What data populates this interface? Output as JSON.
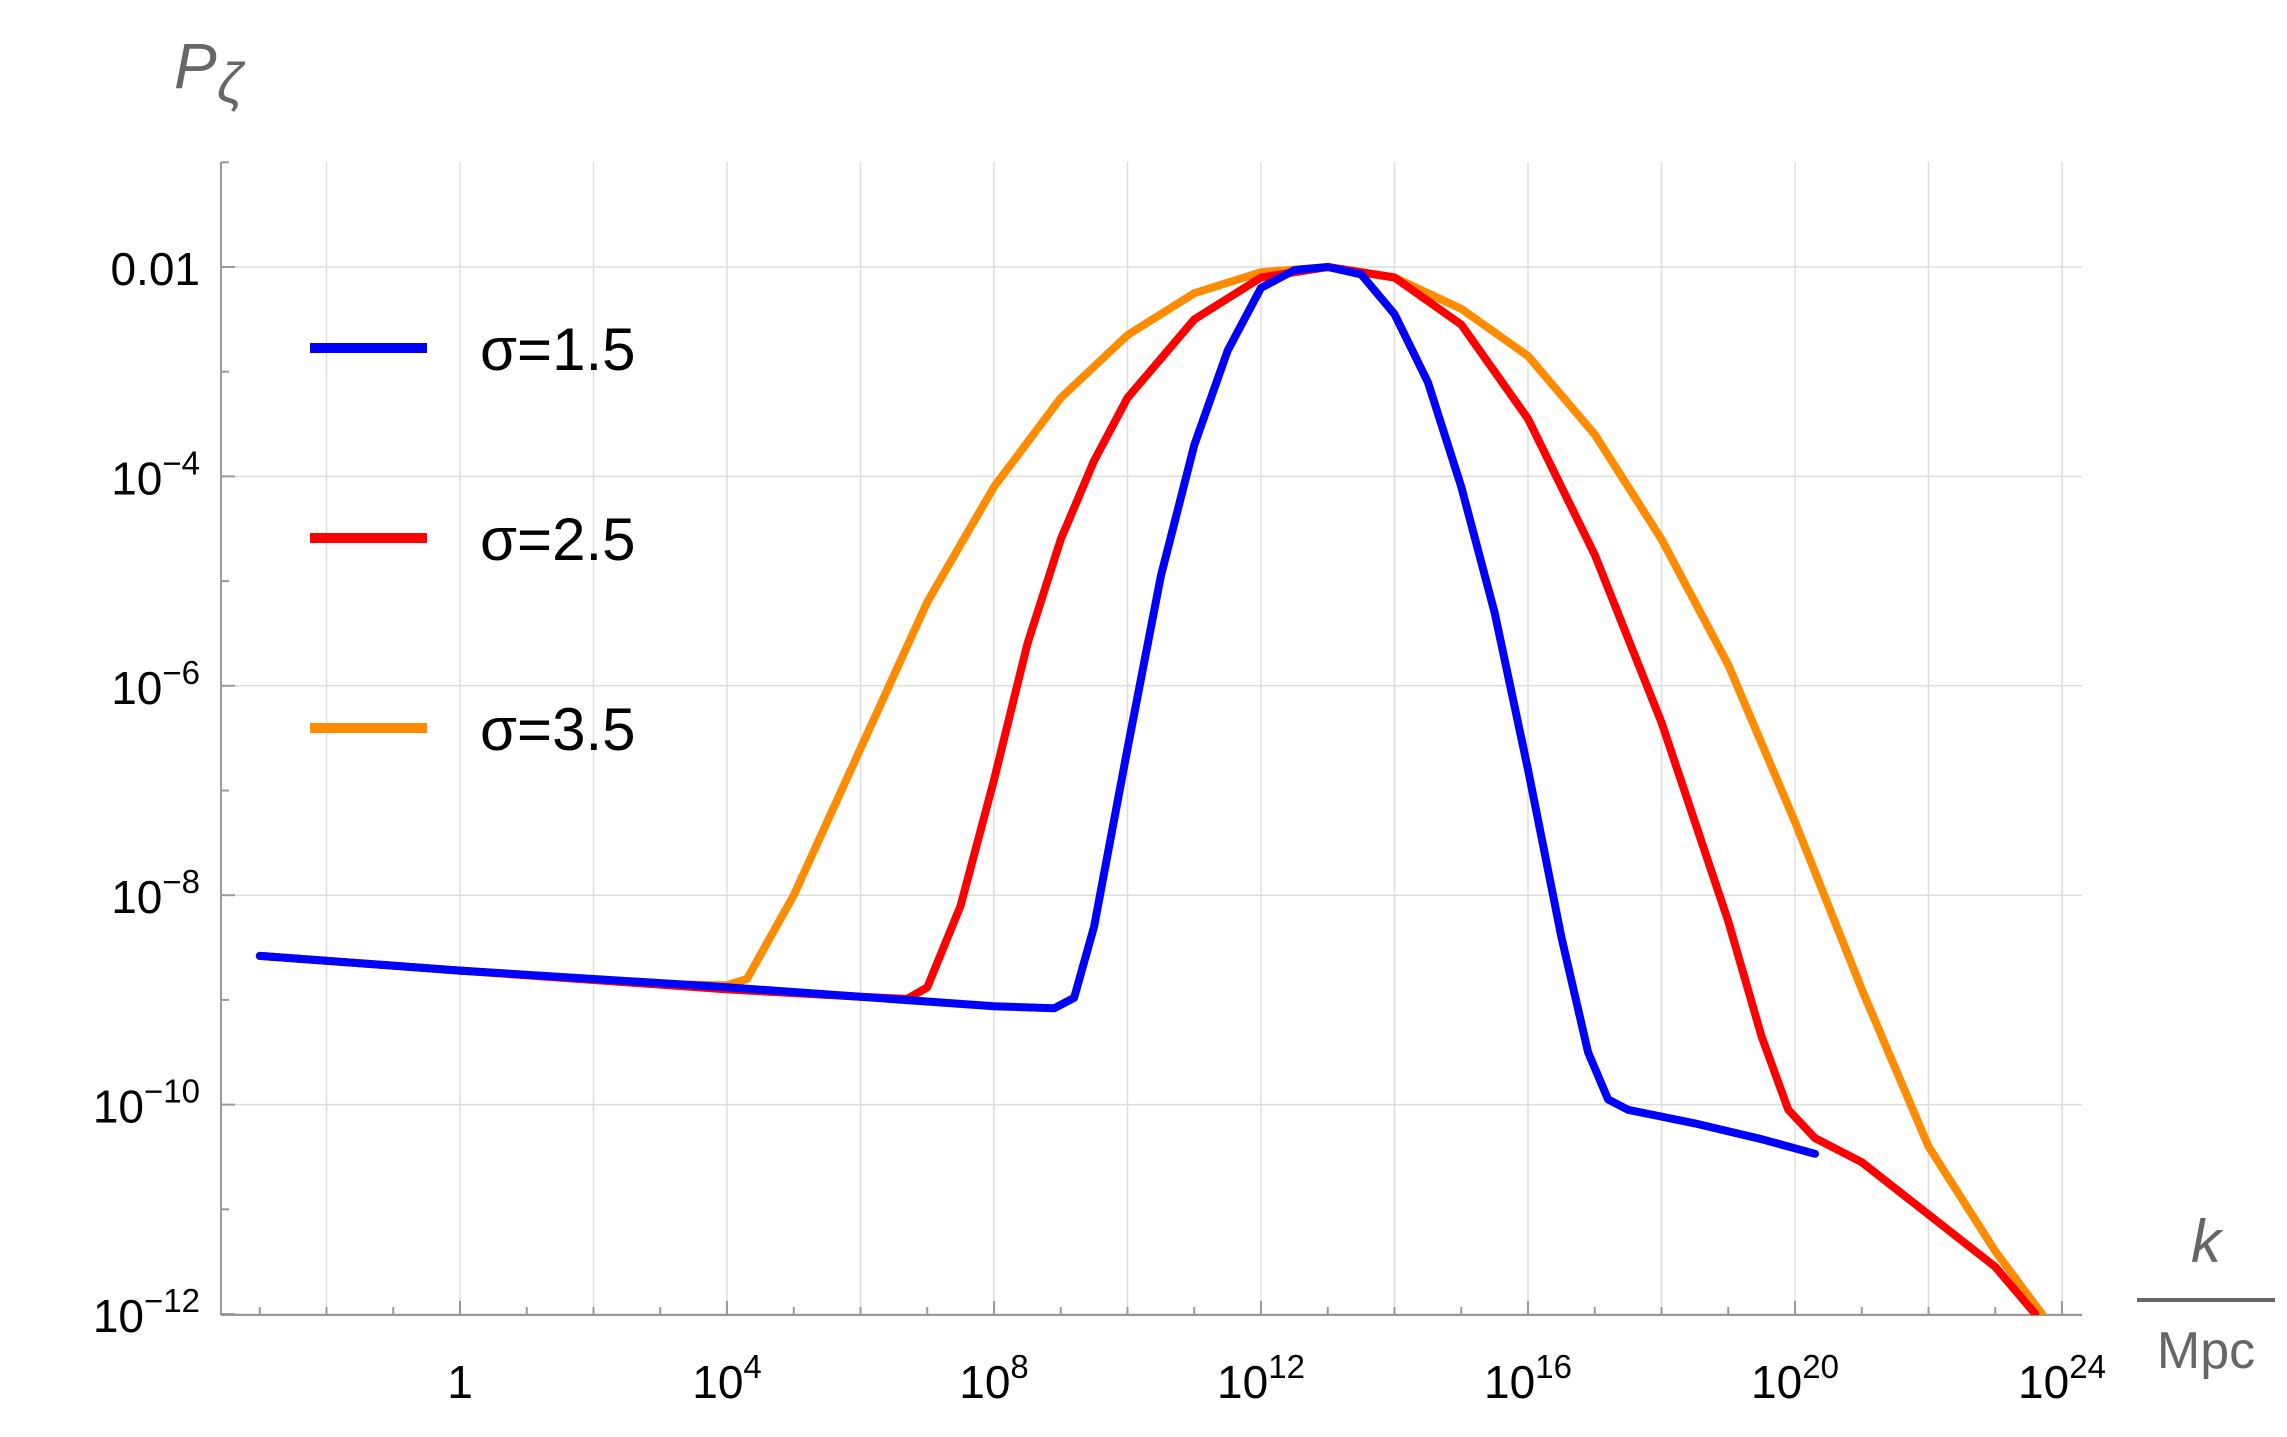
{
  "chart_data": {
    "type": "line",
    "y_title": {
      "symbol": "P",
      "subscript": "ζ"
    },
    "x_title": {
      "numerator": "k",
      "denominator": "Mpc"
    },
    "x_scale": "log10",
    "y_scale": "log10",
    "xlim_log10": [
      -3.3,
      24.0
    ],
    "ylim_log10": [
      -12,
      1
    ],
    "grid": true,
    "legend_position": "top-left",
    "x_ticks": [
      {
        "value_log10": 0,
        "label": "1",
        "exp": ""
      },
      {
        "value_log10": 4,
        "label": "10",
        "exp": "4"
      },
      {
        "value_log10": 8,
        "label": "10",
        "exp": "8"
      },
      {
        "value_log10": 12,
        "label": "10",
        "exp": "12"
      },
      {
        "value_log10": 16,
        "label": "10",
        "exp": "16"
      },
      {
        "value_log10": 20,
        "label": "10",
        "exp": "20"
      },
      {
        "value_log10": 24,
        "label": "10",
        "exp": "24"
      }
    ],
    "y_ticks": [
      {
        "value_log10": -2,
        "label": "0.01",
        "exp": ""
      },
      {
        "value_log10": -4,
        "label": "10",
        "exp": "−4"
      },
      {
        "value_log10": -6,
        "label": "10",
        "exp": "−6"
      },
      {
        "value_log10": -8,
        "label": "10",
        "exp": "−8"
      },
      {
        "value_log10": -10,
        "label": "10",
        "exp": "−10"
      },
      {
        "value_log10": -12,
        "label": "10",
        "exp": "−12"
      }
    ],
    "series": [
      {
        "name": "σ=1.5",
        "color": "#0000ff",
        "points_log10": [
          [
            -3.0,
            -8.58
          ],
          [
            0.0,
            -8.72
          ],
          [
            4.0,
            -8.88
          ],
          [
            6.0,
            -8.97
          ],
          [
            8.0,
            -9.06
          ],
          [
            8.9,
            -9.08
          ],
          [
            9.2,
            -8.98
          ],
          [
            9.5,
            -8.3
          ],
          [
            10.0,
            -6.6
          ],
          [
            10.5,
            -4.95
          ],
          [
            11.0,
            -3.7
          ],
          [
            11.5,
            -2.8
          ],
          [
            12.0,
            -2.2
          ],
          [
            12.5,
            -2.03
          ],
          [
            13.0,
            -2.0
          ],
          [
            13.5,
            -2.07
          ],
          [
            14.0,
            -2.45
          ],
          [
            14.5,
            -3.1
          ],
          [
            15.0,
            -4.1
          ],
          [
            15.5,
            -5.3
          ],
          [
            16.0,
            -6.8
          ],
          [
            16.5,
            -8.4
          ],
          [
            16.9,
            -9.5
          ],
          [
            17.2,
            -9.95
          ],
          [
            17.5,
            -10.05
          ],
          [
            18.5,
            -10.18
          ],
          [
            19.5,
            -10.33
          ],
          [
            20.3,
            -10.47
          ]
        ]
      },
      {
        "name": "σ=2.5",
        "color": "#ff0000",
        "points_log10": [
          [
            -3.0,
            -8.58
          ],
          [
            0.0,
            -8.72
          ],
          [
            4.0,
            -8.9
          ],
          [
            6.0,
            -8.97
          ],
          [
            6.7,
            -8.99
          ],
          [
            7.0,
            -8.88
          ],
          [
            7.5,
            -8.1
          ],
          [
            8.0,
            -6.9
          ],
          [
            8.5,
            -5.6
          ],
          [
            9.0,
            -4.6
          ],
          [
            9.5,
            -3.85
          ],
          [
            10.0,
            -3.25
          ],
          [
            11.0,
            -2.5
          ],
          [
            12.0,
            -2.1
          ],
          [
            13.0,
            -2.0
          ],
          [
            14.0,
            -2.1
          ],
          [
            15.0,
            -2.55
          ],
          [
            16.0,
            -3.45
          ],
          [
            17.0,
            -4.75
          ],
          [
            18.0,
            -6.35
          ],
          [
            19.0,
            -8.25
          ],
          [
            19.5,
            -9.35
          ],
          [
            19.9,
            -10.05
          ],
          [
            20.3,
            -10.32
          ],
          [
            21.0,
            -10.55
          ],
          [
            22.0,
            -11.05
          ],
          [
            23.0,
            -11.55
          ],
          [
            23.6,
            -12.0
          ]
        ]
      },
      {
        "name": "σ=3.5",
        "color": "#ff8c00",
        "points_log10": [
          [
            -3.0,
            -8.58
          ],
          [
            0.0,
            -8.72
          ],
          [
            3.0,
            -8.85
          ],
          [
            4.0,
            -8.86
          ],
          [
            4.3,
            -8.8
          ],
          [
            5.0,
            -8.0
          ],
          [
            6.0,
            -6.6
          ],
          [
            7.0,
            -5.2
          ],
          [
            8.0,
            -4.1
          ],
          [
            9.0,
            -3.25
          ],
          [
            10.0,
            -2.65
          ],
          [
            11.0,
            -2.25
          ],
          [
            12.0,
            -2.05
          ],
          [
            13.0,
            -2.0
          ],
          [
            14.0,
            -2.1
          ],
          [
            15.0,
            -2.4
          ],
          [
            16.0,
            -2.85
          ],
          [
            17.0,
            -3.6
          ],
          [
            18.0,
            -4.6
          ],
          [
            19.0,
            -5.8
          ],
          [
            20.0,
            -7.3
          ],
          [
            21.0,
            -8.9
          ],
          [
            22.0,
            -10.4
          ],
          [
            23.0,
            -11.4
          ],
          [
            23.7,
            -12.0
          ]
        ]
      }
    ]
  }
}
